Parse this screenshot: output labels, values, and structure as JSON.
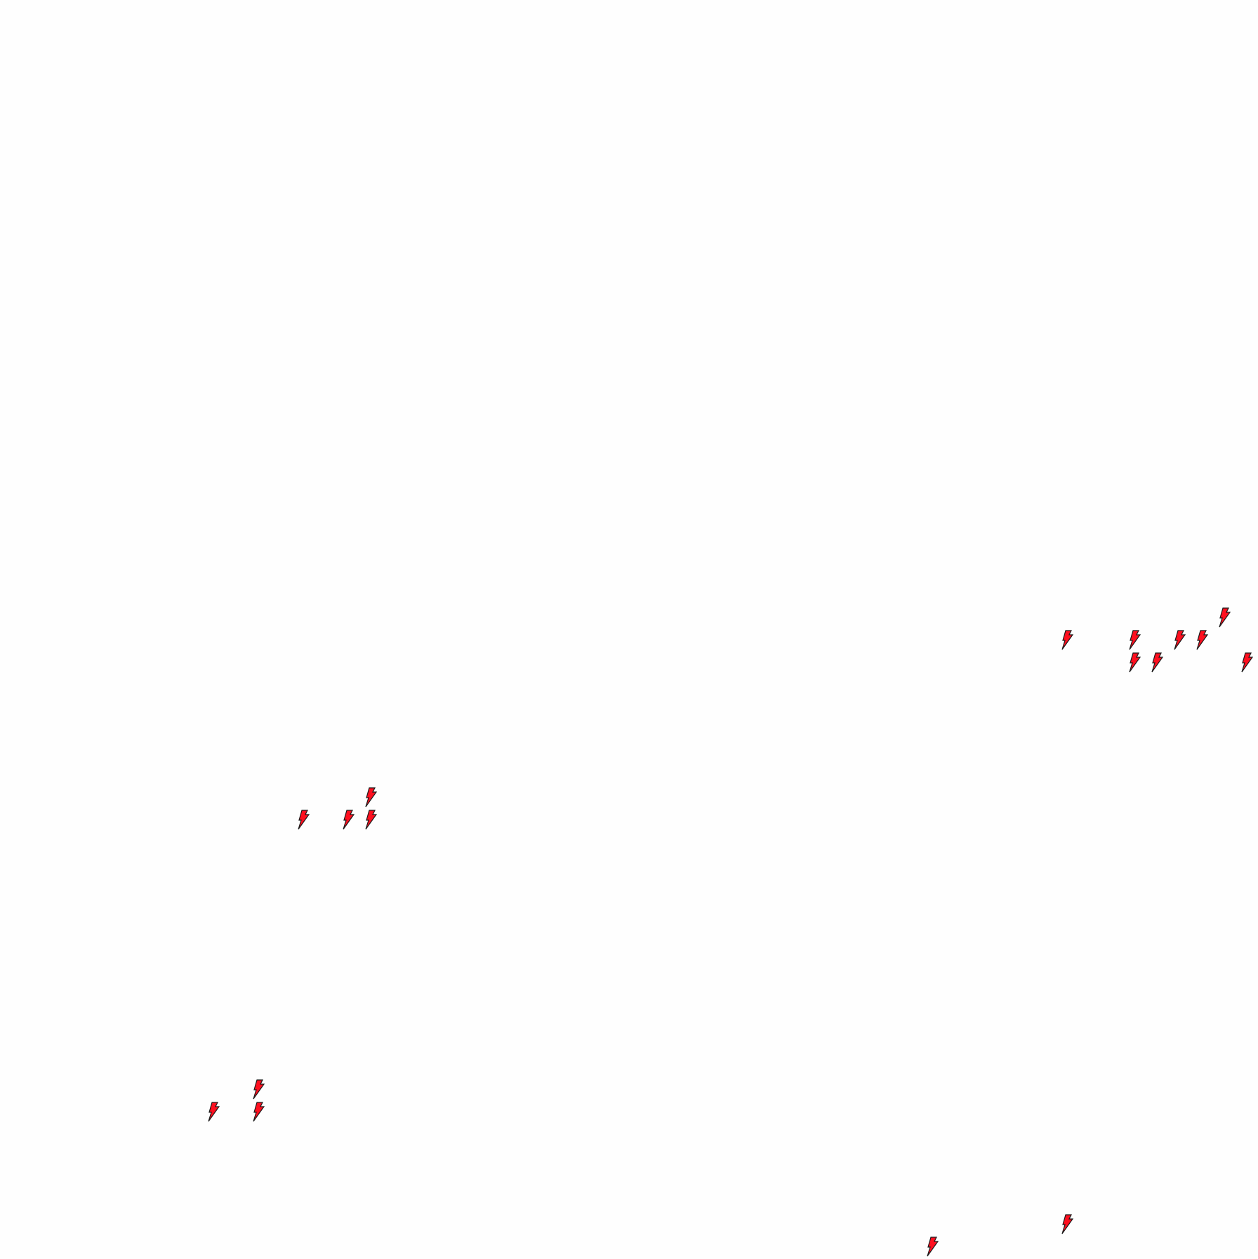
{
  "canvas": {
    "background": "#fefefe"
  },
  "markers": {
    "icon": "lightning-bolt-icon",
    "fill_color": "#ff0f1f",
    "stroke_color": "#1a1a1a",
    "count": 17
  }
}
